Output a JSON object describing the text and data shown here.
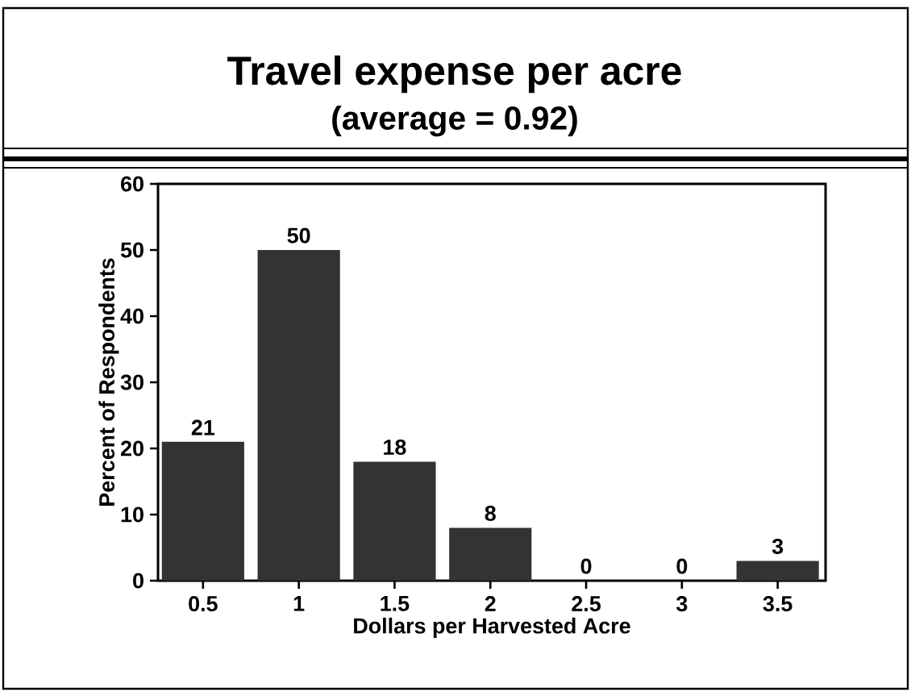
{
  "chart_data": {
    "type": "bar",
    "title": "Travel expense per acre",
    "subtitle": "(average = 0.92)",
    "xlabel": "Dollars per Harvested Acre",
    "ylabel": "Percent of Respondents",
    "categories": [
      "0.5",
      "1",
      "1.5",
      "2",
      "2.5",
      "3",
      "3.5"
    ],
    "values": [
      21,
      50,
      18,
      8,
      0,
      0,
      3
    ],
    "color": "#333333",
    "ylim": [
      0,
      60
    ],
    "yticks": [
      0,
      10,
      20,
      30,
      40,
      50,
      60
    ],
    "data_labels": true
  }
}
